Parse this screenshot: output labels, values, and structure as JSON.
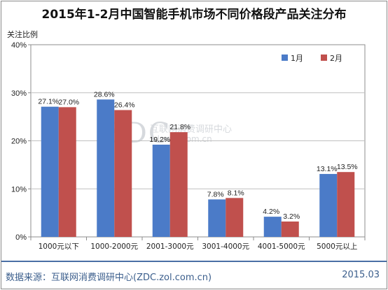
{
  "source": "数据来源：互联网消费调研中心(ZDC.zol.com.cn)",
  "date": "2015.03",
  "watermark": {
    "logo": "ZDC",
    "name": "互联网消费调研中心",
    "url": "zdc.zol.com.cn"
  },
  "colors": {
    "series1": "#4b7bc8",
    "series2": "#c0504d",
    "footer": "#3b5e8c"
  },
  "chart_data": {
    "type": "bar",
    "title": "2015年1-2月中国智能手机市场不同价格段产品关注分布",
    "ylabel": "关注比例",
    "xlabel": "",
    "ylim": [
      0,
      40
    ],
    "yticks": [
      "0%",
      "10%",
      "20%",
      "30%",
      "40%"
    ],
    "grid": true,
    "legend": "top-right",
    "categories": [
      "1000元以下",
      "1000-2000元",
      "2001-3000元",
      "3001-4000元",
      "4001-5000元",
      "5000元以上"
    ],
    "series": [
      {
        "name": "1月",
        "values": [
          27.1,
          28.6,
          19.2,
          7.8,
          4.2,
          13.1
        ],
        "labels": [
          "27.1%",
          "28.6%",
          "19.2%",
          "7.8%",
          "4.2%",
          "13.1%"
        ]
      },
      {
        "name": "2月",
        "values": [
          27.0,
          26.4,
          21.8,
          8.1,
          3.2,
          13.5
        ],
        "labels": [
          "27.0%",
          "26.4%",
          "21.8%",
          "8.1%",
          "3.2%",
          "13.5%"
        ]
      }
    ]
  }
}
